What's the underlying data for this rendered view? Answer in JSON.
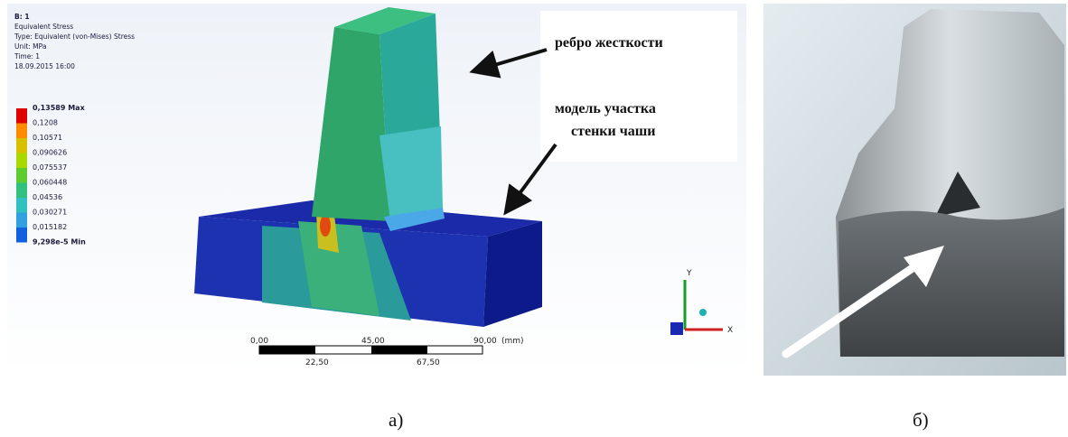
{
  "panel_a": {
    "header": [
      "B: 1",
      "Equivalent Stress",
      "Type: Equivalent (von-Mises) Stress",
      "Unit: MPa",
      "Time: 1",
      "18.09.2015 16:00"
    ],
    "legend": [
      "0,13589 Max",
      "0,1208",
      "0,10571",
      "0,090626",
      "0,075537",
      "0,060448",
      "0,04536",
      "0,030271",
      "0,015182",
      "9,298e-5 Min"
    ],
    "callouts": [
      "ребро жесткости",
      "модель участка",
      "стенки чаши"
    ],
    "scale_bar": {
      "top": [
        "0,00",
        "45,00",
        "90,00"
      ],
      "unit": "(mm)",
      "bottom": [
        "22,50",
        "67,50"
      ]
    },
    "triad": [
      "Y",
      "X"
    ]
  },
  "captions": [
    "а)",
    "б)"
  ]
}
